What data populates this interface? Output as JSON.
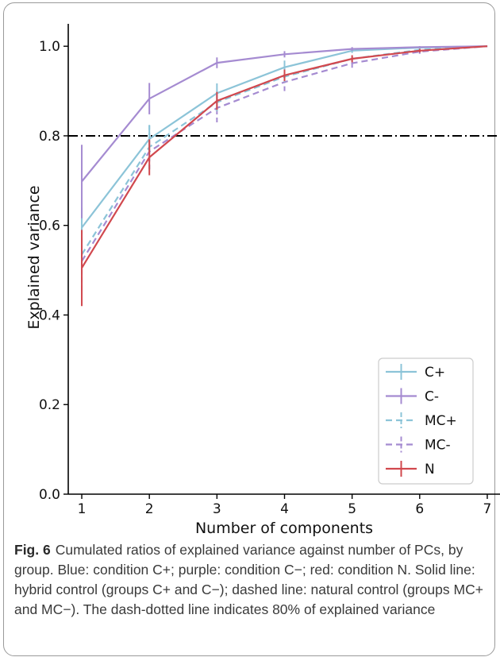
{
  "chart_data": {
    "type": "line",
    "xlabel": "Number of components",
    "ylabel": "Explained variance",
    "x": [
      1,
      2,
      3,
      4,
      5,
      6,
      7
    ],
    "xlim": [
      0.8,
      7.2
    ],
    "ylim": [
      0.0,
      1.05
    ],
    "xticks": [
      "1",
      "2",
      "3",
      "4",
      "5",
      "6",
      "7"
    ],
    "yticks": [
      "0.0",
      "0.2",
      "0.4",
      "0.6",
      "0.8",
      "1.0"
    ],
    "reference_line": {
      "y": 0.8,
      "style": "dash-dot",
      "color": "#000000"
    },
    "legend_position": "lower-right",
    "series": [
      {
        "name": "C+",
        "color": "#8cc4d8",
        "dashed": false,
        "values": [
          0.595,
          0.793,
          0.895,
          0.953,
          0.99,
          0.997,
          1.0
        ],
        "errors": [
          0.045,
          0.03,
          0.022,
          0.015,
          0.005,
          0.003,
          0.0
        ]
      },
      {
        "name": "C-",
        "color": "#a58bd1",
        "dashed": false,
        "values": [
          0.698,
          0.883,
          0.963,
          0.982,
          0.994,
          0.998,
          1.0
        ],
        "errors": [
          0.082,
          0.035,
          0.012,
          0.007,
          0.004,
          0.002,
          0.0
        ]
      },
      {
        "name": "MC+",
        "color": "#8cc4d8",
        "dashed": true,
        "values": [
          0.535,
          0.775,
          0.875,
          0.932,
          0.972,
          0.992,
          1.0
        ],
        "errors": [
          0.06,
          0.05,
          0.02,
          0.012,
          0.007,
          0.004,
          0.0
        ]
      },
      {
        "name": "MC-",
        "color": "#a58bd1",
        "dashed": true,
        "values": [
          0.52,
          0.765,
          0.862,
          0.92,
          0.962,
          0.988,
          1.0
        ],
        "errors": [
          0.065,
          0.04,
          0.032,
          0.02,
          0.01,
          0.005,
          0.0
        ]
      },
      {
        "name": "N",
        "color": "#d1484e",
        "dashed": false,
        "values": [
          0.505,
          0.752,
          0.878,
          0.935,
          0.972,
          0.99,
          1.0
        ],
        "errors": [
          0.085,
          0.04,
          0.02,
          0.013,
          0.008,
          0.004,
          0.0
        ]
      }
    ]
  },
  "caption": {
    "label": "Fig. 6",
    "text": "Cumulated ratios of explained variance against number of PCs, by group. Blue: condition C+; purple: condition C−; red: condition N. Solid line: hybrid control (groups C+ and C−); dashed line: natural control (groups MC+ and MC−). The dash-dotted line indicates 80% of explained variance"
  }
}
